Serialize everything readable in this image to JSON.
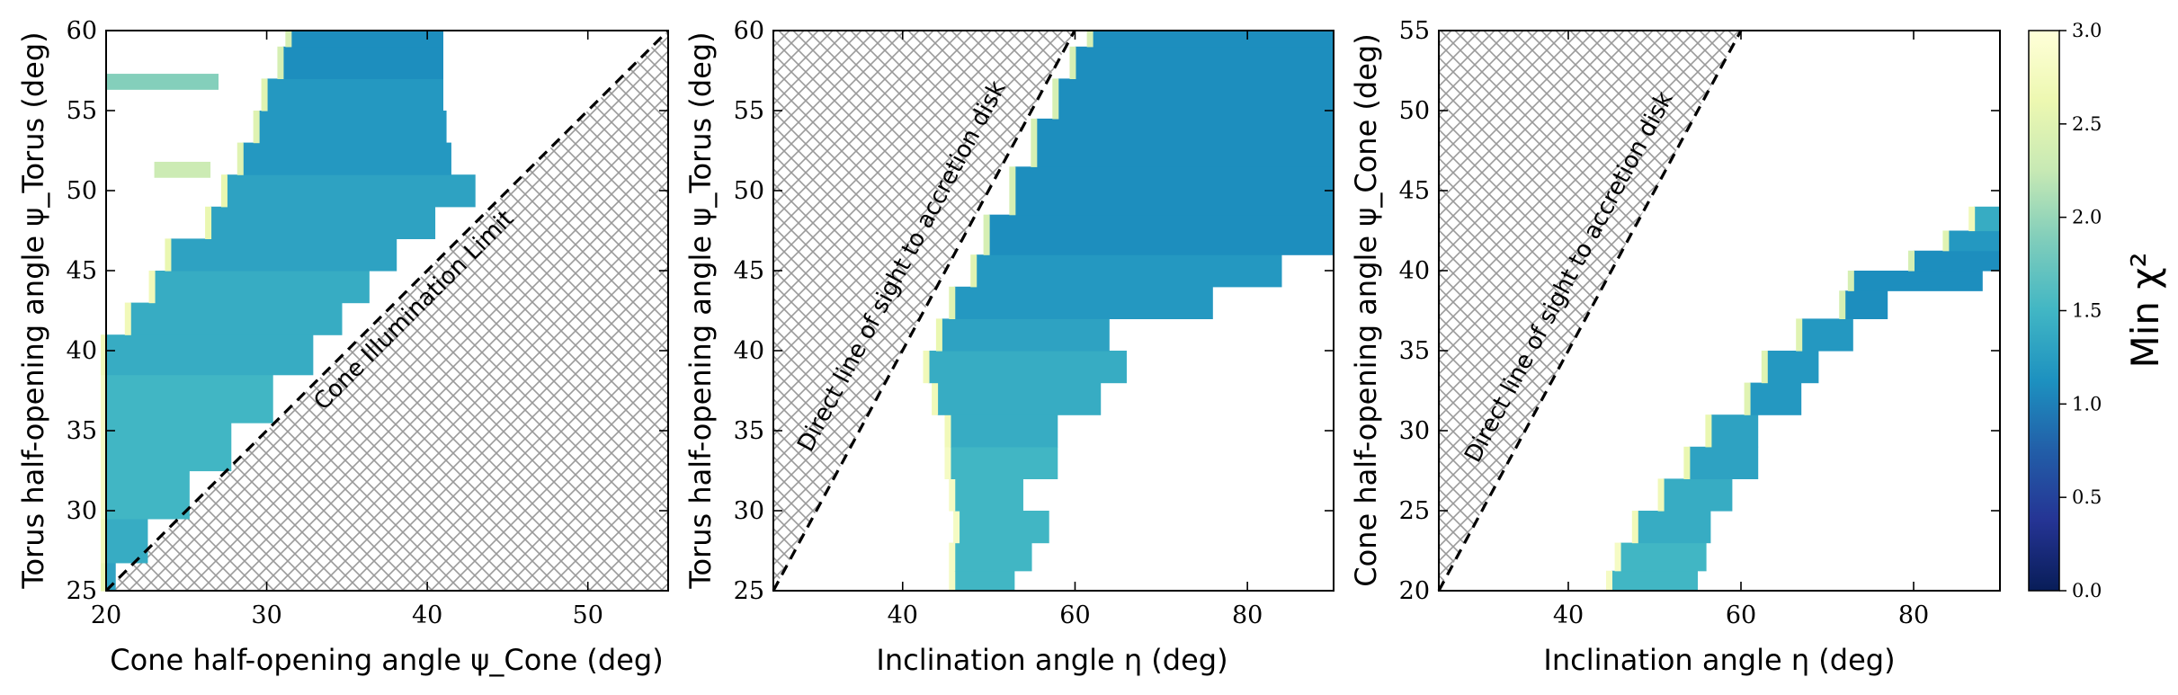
{
  "chart_data": [
    {
      "type": "heatmap",
      "xlabel": "Cone half-opening angle ψ_Cone (deg)",
      "ylabel": "Torus half-opening angle ψ_Torus (deg)",
      "xlim": [
        20,
        55
      ],
      "ylim": [
        25,
        60
      ],
      "xticks": [
        "20",
        "30",
        "40",
        "50"
      ],
      "yticks": [
        "25",
        "30",
        "35",
        "40",
        "45",
        "50",
        "55",
        "60"
      ],
      "forbidden_region": "psi_Torus < psi_Cone",
      "boundary_line": {
        "from": [
          25,
          25
        ],
        "to": [
          55,
          60
        ],
        "style": "dashed"
      },
      "annotation": "Cone Illumination Limit",
      "region_rows": [
        {
          "y": 25.5,
          "x_from": 20.0,
          "x_to": 20.6,
          "value": 1.3
        },
        {
          "y": 28.0,
          "x_from": 20.0,
          "x_to": 22.6,
          "value": 1.4
        },
        {
          "y": 31.0,
          "x_from": 20.0,
          "x_to": 25.2,
          "value": 1.5
        },
        {
          "y": 34.0,
          "x_from": 20.0,
          "x_to": 27.8,
          "value": 1.5
        },
        {
          "y": 37.0,
          "x_from": 20.0,
          "x_to": 30.4,
          "value": 1.5
        },
        {
          "y": 40.0,
          "x_from": 20.0,
          "x_to": 32.9,
          "value": 1.4
        },
        {
          "y": 42.0,
          "x_from": 21.5,
          "x_to": 34.7,
          "value": 1.4
        },
        {
          "y": 44.0,
          "x_from": 23.0,
          "x_to": 36.4,
          "value": 1.4
        },
        {
          "y": 46.0,
          "x_from": 24.0,
          "x_to": 38.1,
          "value": 1.3
        },
        {
          "y": 48.0,
          "x_from": 26.5,
          "x_to": 40.5,
          "value": 1.3
        },
        {
          "y": 50.0,
          "x_from": 27.5,
          "x_to": 43.0,
          "value": 1.3
        },
        {
          "y": 52.0,
          "x_from": 28.5,
          "x_to": 41.5,
          "value": 1.2
        },
        {
          "y": 54.0,
          "x_from": 29.5,
          "x_to": 41.2,
          "value": 1.2
        },
        {
          "y": 56.0,
          "x_from": 30.0,
          "x_to": 41.0,
          "value": 1.2
        },
        {
          "y": 58.0,
          "x_from": 31.0,
          "x_to": 41.0,
          "value": 1.1
        },
        {
          "y": 60.0,
          "x_from": 31.5,
          "x_to": 41.0,
          "value": 1.1
        }
      ],
      "region_notes": [
        {
          "y": 56.8,
          "x_from": 20.0,
          "x_to": 27.0,
          "value": 1.9
        },
        {
          "y": 51.3,
          "x_from": 23.0,
          "x_to": 26.5,
          "value": 2.3
        }
      ]
    },
    {
      "type": "heatmap",
      "xlabel": "Inclination angle η (deg)",
      "ylabel": "Torus half-opening angle ψ_Torus (deg)",
      "xlim": [
        25,
        90
      ],
      "ylim": [
        25,
        60
      ],
      "xticks": [
        "40",
        "60",
        "80"
      ],
      "yticks": [
        "25",
        "30",
        "35",
        "40",
        "45",
        "50",
        "55",
        "60"
      ],
      "forbidden_region": "η < ψ_Torus + ...",
      "boundary_line": {
        "from": [
          25,
          25
        ],
        "to": [
          60,
          60
        ],
        "style": "dashed"
      },
      "annotation": "Direct line of sight to accretion disk",
      "region_rows": [
        {
          "y": 25.5,
          "x_from": 46.0,
          "x_to": 53.0,
          "value": 1.5
        },
        {
          "y": 27.0,
          "x_from": 46.0,
          "x_to": 55.0,
          "value": 1.5
        },
        {
          "y": 29.0,
          "x_from": 46.5,
          "x_to": 57.0,
          "value": 1.5
        },
        {
          "y": 31.0,
          "x_from": 46.0,
          "x_to": 54.0,
          "value": 1.5
        },
        {
          "y": 33.0,
          "x_from": 45.5,
          "x_to": 58.0,
          "value": 1.5
        },
        {
          "y": 35.0,
          "x_from": 45.5,
          "x_to": 58.0,
          "value": 1.4
        },
        {
          "y": 37.0,
          "x_from": 44.0,
          "x_to": 63.0,
          "value": 1.4
        },
        {
          "y": 39.0,
          "x_from": 43.0,
          "x_to": 66.0,
          "value": 1.4
        },
        {
          "y": 41.0,
          "x_from": 44.5,
          "x_to": 64.0,
          "value": 1.3
        },
        {
          "y": 43.0,
          "x_from": 46.0,
          "x_to": 76.0,
          "value": 1.2
        },
        {
          "y": 45.0,
          "x_from": 48.5,
          "x_to": 84.0,
          "value": 1.2
        },
        {
          "y": 47.0,
          "x_from": 50.0,
          "x_to": 90.0,
          "value": 1.1
        },
        {
          "y": 50.0,
          "x_from": 53.0,
          "x_to": 90.0,
          "value": 1.1
        },
        {
          "y": 53.0,
          "x_from": 55.5,
          "x_to": 90.0,
          "value": 1.1
        },
        {
          "y": 56.0,
          "x_from": 58.0,
          "x_to": 90.0,
          "value": 1.1
        },
        {
          "y": 58.0,
          "x_from": 60.0,
          "x_to": 90.0,
          "value": 1.1
        },
        {
          "y": 60.0,
          "x_from": 62.0,
          "x_to": 90.0,
          "value": 1.1
        }
      ]
    },
    {
      "type": "heatmap",
      "xlabel": "Inclination angle η (deg)",
      "ylabel": "Cone half-opening angle ψ_Cone (deg)",
      "xlim": [
        25,
        90
      ],
      "ylim": [
        20,
        55
      ],
      "xticks": [
        "40",
        "60",
        "80"
      ],
      "yticks": [
        "20",
        "25",
        "30",
        "35",
        "40",
        "45",
        "50",
        "55"
      ],
      "forbidden_region": "η < ψ_Cone + ...",
      "boundary_line": {
        "from": [
          25,
          20
        ],
        "to": [
          60,
          55
        ],
        "style": "dashed"
      },
      "annotation": "Direct line of sight to accretion disk",
      "region_rows": [
        {
          "y": 20.5,
          "x_from": 45.0,
          "x_to": 55.0,
          "value": 1.5
        },
        {
          "y": 22.0,
          "x_from": 46.0,
          "x_to": 56.0,
          "value": 1.5
        },
        {
          "y": 24.0,
          "x_from": 48.0,
          "x_to": 56.5,
          "value": 1.4
        },
        {
          "y": 26.0,
          "x_from": 51.0,
          "x_to": 59.0,
          "value": 1.4
        },
        {
          "y": 28.0,
          "x_from": 54.0,
          "x_to": 62.0,
          "value": 1.3
        },
        {
          "y": 30.0,
          "x_from": 56.5,
          "x_to": 62.0,
          "value": 1.3
        },
        {
          "y": 32.0,
          "x_from": 61.0,
          "x_to": 67.0,
          "value": 1.2
        },
        {
          "y": 34.0,
          "x_from": 63.0,
          "x_to": 69.0,
          "value": 1.2
        },
        {
          "y": 36.0,
          "x_from": 67.0,
          "x_to": 73.0,
          "value": 1.2
        },
        {
          "y": 38.0,
          "x_from": 72.0,
          "x_to": 77.0,
          "value": 1.1
        },
        {
          "y": 39.5,
          "x_from": 73.0,
          "x_to": 88.0,
          "value": 1.1
        },
        {
          "y": 40.5,
          "x_from": 80.0,
          "x_to": 90.0,
          "value": 1.1
        },
        {
          "y": 42.0,
          "x_from": 84.0,
          "x_to": 90.0,
          "value": 1.2
        },
        {
          "y": 43.0,
          "x_from": 87.0,
          "x_to": 90.0,
          "value": 1.4
        }
      ]
    }
  ],
  "colorbar": {
    "label": "Min χ²",
    "range": [
      0.0,
      3.0
    ],
    "ticks": [
      "0.0",
      "0.5",
      "1.0",
      "1.5",
      "2.0",
      "2.5",
      "3.0"
    ],
    "colormap": [
      "#081d58",
      "#253494",
      "#225ea8",
      "#1d91c0",
      "#41b6c4",
      "#7fcdbb",
      "#c7e9b4",
      "#edf8b1",
      "#ffffd9"
    ]
  },
  "hatch_color": "#9a9a9a"
}
